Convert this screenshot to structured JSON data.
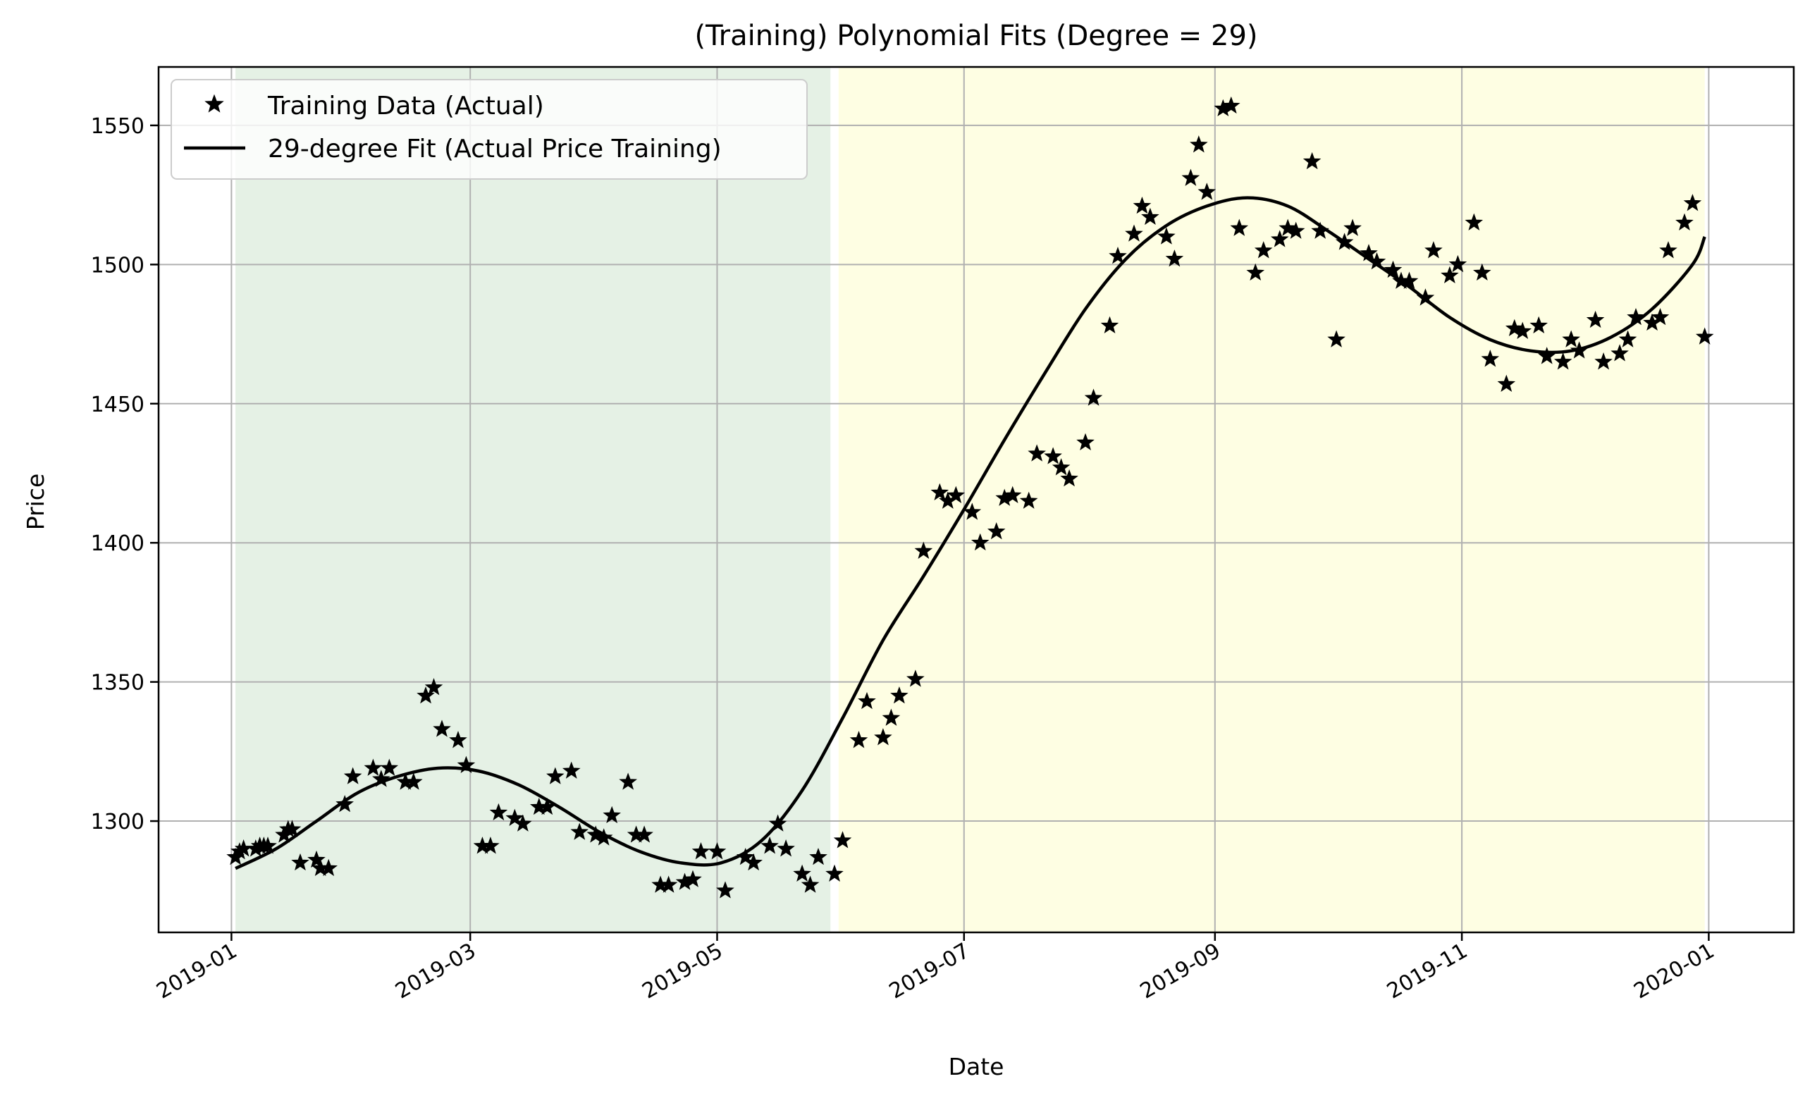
{
  "chart_data": {
    "type": "scatter",
    "title": "(Training) Polynomial Fits (Degree = 29)",
    "xlabel": "Date",
    "ylabel": "Price",
    "xlim": [
      "2018-12-14",
      "2020-01-22"
    ],
    "ylim": [
      1260,
      1571
    ],
    "x_ticks": [
      "2019-01",
      "2019-03",
      "2019-05",
      "2019-07",
      "2019-09",
      "2019-11",
      "2020-01"
    ],
    "y_ticks": [
      1300,
      1350,
      1400,
      1450,
      1500,
      1550
    ],
    "grid": true,
    "legend_position": "top-left",
    "shaded_regions": [
      {
        "start": "2019-01-02",
        "end": "2019-05-29",
        "color": "#e5f1e5"
      },
      {
        "start": "2019-05-31",
        "end": "2019-12-31",
        "color": "#fefee3"
      }
    ],
    "series": [
      {
        "name": "Training Data (Actual)",
        "kind": "points",
        "marker": "star",
        "color": "#000000",
        "x": [
          "2019-01-02",
          "2019-01-03",
          "2019-01-04",
          "2019-01-07",
          "2019-01-08",
          "2019-01-09",
          "2019-01-10",
          "2019-01-14",
          "2019-01-15",
          "2019-01-16",
          "2019-01-18",
          "2019-01-22",
          "2019-01-23",
          "2019-01-25",
          "2019-01-29",
          "2019-01-31",
          "2019-02-05",
          "2019-02-07",
          "2019-02-09",
          "2019-02-13",
          "2019-02-15",
          "2019-02-18",
          "2019-02-20",
          "2019-02-22",
          "2019-02-26",
          "2019-02-28",
          "2019-03-04",
          "2019-03-06",
          "2019-03-08",
          "2019-03-12",
          "2019-03-14",
          "2019-03-18",
          "2019-03-20",
          "2019-03-22",
          "2019-03-26",
          "2019-03-28",
          "2019-04-01",
          "2019-04-03",
          "2019-04-05",
          "2019-04-09",
          "2019-04-11",
          "2019-04-13",
          "2019-04-17",
          "2019-04-19",
          "2019-04-23",
          "2019-04-25",
          "2019-04-27",
          "2019-05-01",
          "2019-05-03",
          "2019-05-08",
          "2019-05-10",
          "2019-05-14",
          "2019-05-16",
          "2019-05-18",
          "2019-05-22",
          "2019-05-24",
          "2019-05-26",
          "2019-05-30",
          "2019-06-01",
          "2019-06-05",
          "2019-06-07",
          "2019-06-11",
          "2019-06-13",
          "2019-06-15",
          "2019-06-19",
          "2019-06-21",
          "2019-06-25",
          "2019-06-27",
          "2019-06-29",
          "2019-07-03",
          "2019-07-05",
          "2019-07-09",
          "2019-07-11",
          "2019-07-13",
          "2019-07-17",
          "2019-07-19",
          "2019-07-23",
          "2019-07-25",
          "2019-07-27",
          "2019-07-31",
          "2019-08-02",
          "2019-08-06",
          "2019-08-08",
          "2019-08-12",
          "2019-08-14",
          "2019-08-16",
          "2019-08-20",
          "2019-08-22",
          "2019-08-26",
          "2019-08-28",
          "2019-08-30",
          "2019-09-03",
          "2019-09-05",
          "2019-09-07",
          "2019-09-11",
          "2019-09-13",
          "2019-09-17",
          "2019-09-19",
          "2019-09-21",
          "2019-09-25",
          "2019-09-27",
          "2019-10-01",
          "2019-10-03",
          "2019-10-05",
          "2019-10-09",
          "2019-10-11",
          "2019-10-15",
          "2019-10-17",
          "2019-10-19",
          "2019-10-23",
          "2019-10-25",
          "2019-10-29",
          "2019-10-31",
          "2019-11-04",
          "2019-11-06",
          "2019-11-08",
          "2019-11-12",
          "2019-11-14",
          "2019-11-16",
          "2019-11-20",
          "2019-11-22",
          "2019-11-26",
          "2019-11-28",
          "2019-11-30",
          "2019-12-04",
          "2019-12-06",
          "2019-12-10",
          "2019-12-12",
          "2019-12-14",
          "2019-12-18",
          "2019-12-20",
          "2019-12-22",
          "2019-12-26",
          "2019-12-28",
          "2019-12-31"
        ],
        "y": [
          1287,
          1289,
          1290,
          1290,
          1291,
          1291,
          1291,
          1295,
          1297,
          1297,
          1285,
          1286,
          1283,
          1283,
          1306,
          1316,
          1319,
          1315,
          1319,
          1314,
          1314,
          1345,
          1348,
          1333,
          1329,
          1320,
          1291,
          1291,
          1303,
          1301,
          1299,
          1305,
          1305,
          1316,
          1318,
          1296,
          1295,
          1294,
          1302,
          1314,
          1295,
          1295,
          1277,
          1277,
          1278,
          1279,
          1289,
          1289,
          1275,
          1287,
          1285,
          1291,
          1299,
          1290,
          1281,
          1277,
          1287,
          1281,
          1293,
          1329,
          1343,
          1330,
          1337,
          1345,
          1351,
          1397,
          1418,
          1415,
          1417,
          1411,
          1400,
          1404,
          1416,
          1417,
          1415,
          1432,
          1431,
          1427,
          1423,
          1436,
          1452,
          1478,
          1503,
          1511,
          1521,
          1517,
          1510,
          1502,
          1531,
          1543,
          1526,
          1556,
          1557,
          1513,
          1497,
          1505,
          1509,
          1513,
          1512,
          1537,
          1512,
          1473,
          1508,
          1513,
          1504,
          1501,
          1498,
          1494,
          1494,
          1488,
          1505,
          1496,
          1500,
          1515,
          1497,
          1466,
          1457,
          1477,
          1476,
          1478,
          1467,
          1465,
          1473,
          1469,
          1480,
          1465,
          1468,
          1473,
          1481,
          1479,
          1481,
          1505,
          1515,
          1522,
          1474
        ]
      },
      {
        "name": "29-degree Fit (Actual Price Training)",
        "kind": "line",
        "color": "#000000",
        "x": [
          "2019-01-02",
          "2019-01-12",
          "2019-01-22",
          "2019-02-01",
          "2019-02-11",
          "2019-02-21",
          "2019-03-03",
          "2019-03-13",
          "2019-03-23",
          "2019-04-02",
          "2019-04-12",
          "2019-04-22",
          "2019-05-02",
          "2019-05-12",
          "2019-05-22",
          "2019-06-01",
          "2019-06-11",
          "2019-06-21",
          "2019-07-01",
          "2019-07-11",
          "2019-07-21",
          "2019-07-31",
          "2019-08-10",
          "2019-08-20",
          "2019-08-30",
          "2019-09-09",
          "2019-09-19",
          "2019-09-29",
          "2019-10-09",
          "2019-10-19",
          "2019-10-29",
          "2019-11-08",
          "2019-11-18",
          "2019-11-28",
          "2019-12-08",
          "2019-12-18",
          "2019-12-28",
          "2019-12-31"
        ],
        "y": [
          1283,
          1290,
          1300,
          1310,
          1316,
          1319,
          1318,
          1313,
          1305,
          1296,
          1289,
          1285,
          1285,
          1293,
          1311,
          1337,
          1365,
          1388,
          1412,
          1437,
          1461,
          1484,
          1502,
          1514,
          1521,
          1524,
          1521,
          1512,
          1502,
          1492,
          1481,
          1473,
          1469,
          1469,
          1474,
          1484,
          1500,
          1510
        ]
      }
    ]
  }
}
